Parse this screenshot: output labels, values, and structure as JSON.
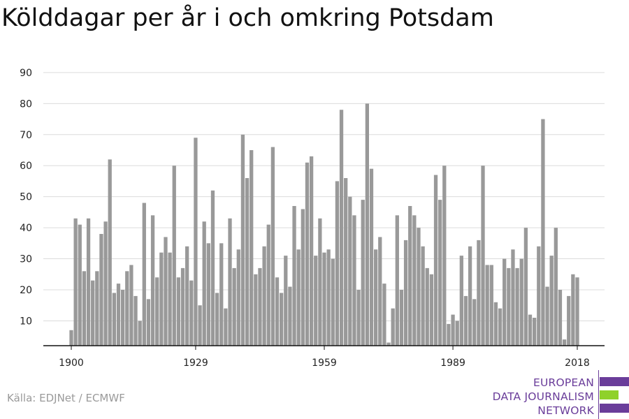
{
  "title": "Kölddagar per år i och omkring Potsdam",
  "source": "Källa: EDJNet / ECMWF",
  "logo": {
    "line1": "EUROPEAN",
    "line2": "DATA JOURNALISM",
    "line3": "NETWORK",
    "colors": [
      "#6a3d9a",
      "#8fd12b",
      "#6a3d9a"
    ]
  },
  "chart_data": {
    "type": "bar",
    "title": "Kölddagar per år i och omkring Potsdam",
    "xlabel": "",
    "ylabel": "",
    "color": "#999999",
    "ylim": [
      2,
      92
    ],
    "yticks": [
      10,
      20,
      30,
      40,
      50,
      60,
      70,
      80,
      90
    ],
    "xticks": [
      1900,
      1929,
      1959,
      1989,
      2018
    ],
    "grid": true,
    "x": [
      1900,
      1901,
      1902,
      1903,
      1904,
      1905,
      1906,
      1907,
      1908,
      1909,
      1910,
      1911,
      1912,
      1913,
      1914,
      1915,
      1916,
      1917,
      1918,
      1919,
      1920,
      1921,
      1922,
      1923,
      1924,
      1925,
      1926,
      1927,
      1928,
      1929,
      1930,
      1931,
      1932,
      1933,
      1934,
      1935,
      1936,
      1937,
      1938,
      1939,
      1940,
      1941,
      1942,
      1943,
      1944,
      1945,
      1946,
      1947,
      1948,
      1949,
      1950,
      1951,
      1952,
      1953,
      1954,
      1955,
      1956,
      1957,
      1958,
      1959,
      1960,
      1961,
      1962,
      1963,
      1964,
      1965,
      1966,
      1967,
      1968,
      1969,
      1970,
      1971,
      1972,
      1973,
      1974,
      1975,
      1976,
      1977,
      1978,
      1979,
      1980,
      1981,
      1982,
      1983,
      1984,
      1985,
      1986,
      1987,
      1988,
      1989,
      1990,
      1991,
      1992,
      1993,
      1994,
      1995,
      1996,
      1997,
      1998,
      1999,
      2000,
      2001,
      2002,
      2003,
      2004,
      2005,
      2006,
      2007,
      2008,
      2009,
      2010,
      2011,
      2012,
      2013,
      2014,
      2015,
      2016,
      2017,
      2018
    ],
    "values": [
      7,
      43,
      41,
      26,
      43,
      23,
      26,
      38,
      42,
      62,
      19,
      22,
      20,
      26,
      28,
      18,
      10,
      48,
      17,
      44,
      24,
      32,
      37,
      32,
      60,
      24,
      27,
      34,
      23,
      69,
      15,
      42,
      35,
      52,
      19,
      35,
      14,
      43,
      27,
      33,
      70,
      56,
      65,
      25,
      27,
      34,
      41,
      66,
      24,
      19,
      31,
      21,
      47,
      33,
      46,
      61,
      63,
      31,
      43,
      32,
      33,
      30,
      55,
      78,
      56,
      50,
      44,
      20,
      49,
      80,
      59,
      33,
      37,
      22,
      3,
      14,
      44,
      20,
      36,
      47,
      44,
      40,
      34,
      27,
      25,
      57,
      49,
      60,
      9,
      12,
      10,
      31,
      18,
      34,
      17,
      36,
      60,
      28,
      28,
      16,
      14,
      30,
      27,
      33,
      27,
      30,
      40,
      12,
      11,
      34,
      75,
      21,
      31,
      40,
      20,
      4,
      18,
      25,
      24
    ]
  }
}
